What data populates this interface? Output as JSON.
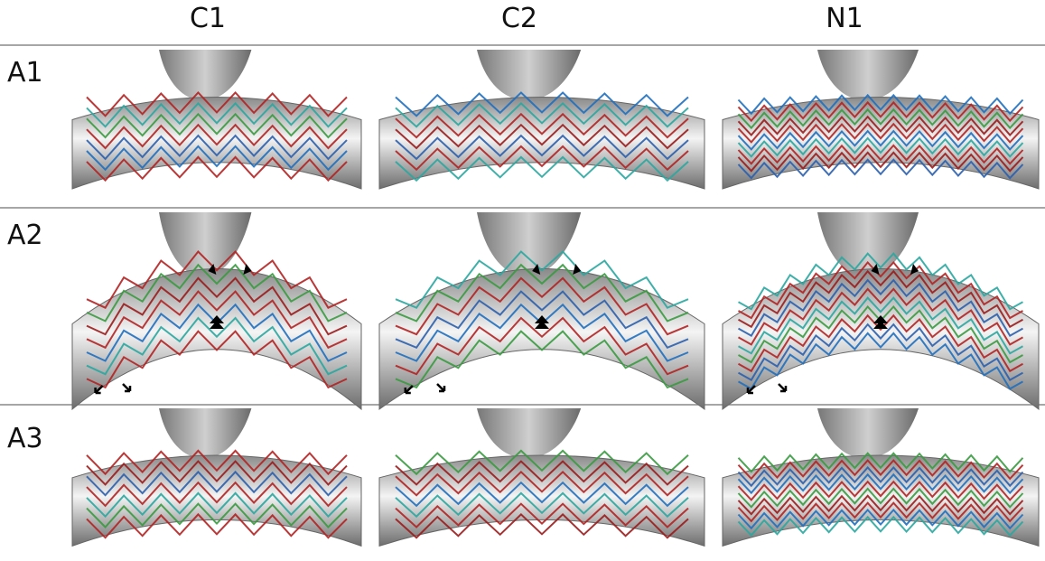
{
  "columns": [
    "C1",
    "C2",
    "N1"
  ],
  "rows": [
    "A1",
    "A2",
    "A3"
  ]
}
